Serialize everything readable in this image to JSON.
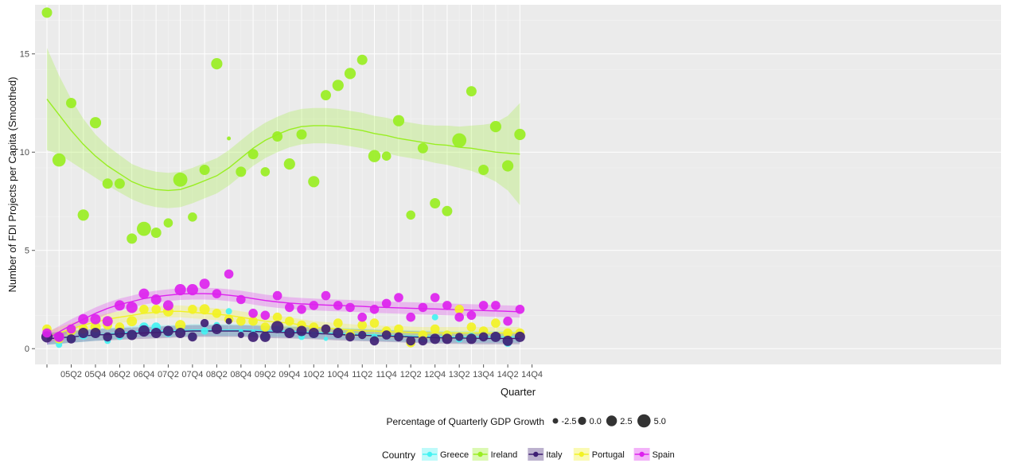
{
  "chart_data": {
    "type": "scatter",
    "title": "",
    "xlabel": "Quarter",
    "ylabel": "Number of FDI Projects per Capita (Smoothed)",
    "ylim": [
      -0.8,
      17.5
    ],
    "yticks": [
      0,
      5,
      10,
      15
    ],
    "grid": true,
    "legend_placement": "bottom",
    "x": [
      "05Q1",
      "05Q2",
      "05Q3",
      "05Q4",
      "06Q1",
      "06Q2",
      "06Q3",
      "06Q4",
      "07Q1",
      "07Q2",
      "07Q3",
      "07Q4",
      "08Q1",
      "08Q2",
      "08Q3",
      "08Q4",
      "09Q1",
      "09Q2",
      "09Q3",
      "09Q4",
      "10Q1",
      "10Q2",
      "10Q3",
      "10Q4",
      "11Q1",
      "11Q2",
      "11Q3",
      "11Q4",
      "12Q1",
      "12Q2",
      "12Q3",
      "12Q4",
      "13Q1",
      "13Q2",
      "13Q3",
      "13Q4",
      "14Q1",
      "14Q2",
      "14Q3",
      "14Q4"
    ],
    "x_tick_labels": [
      "",
      "05Q2",
      "05Q4",
      "06Q2",
      "06Q4",
      "07Q2",
      "07Q4",
      "08Q2",
      "08Q4",
      "09Q2",
      "09Q4",
      "10Q2",
      "10Q4",
      "11Q2",
      "11Q4",
      "12Q2",
      "12Q4",
      "13Q2",
      "13Q4",
      "14Q2",
      "14Q4"
    ],
    "size_legend": {
      "title": "Percentage of Quarterly GDP Growth",
      "labels": [
        "-2.5",
        "0.0",
        "2.5",
        "5.0"
      ]
    },
    "color_legend_title": "Country",
    "series": [
      {
        "name": "Greece",
        "color": "#44f2f2",
        "values": [
          0.9,
          0.2,
          0.5,
          0.7,
          0.8,
          0.4,
          0.6,
          0.7,
          1.1,
          1.1,
          0.8,
          1.0,
          0.6,
          0.9,
          1.2,
          1.9,
          0.9,
          0.8,
          0.6,
          1.0,
          0.9,
          0.6,
          0.7,
          0.5,
          0.8,
          0.7,
          0.7,
          0.6,
          0.7,
          0.6,
          0.5,
          0.5,
          1.6,
          0.7,
          0.5,
          0.6,
          0.7,
          0.6,
          0.3,
          0.7
        ],
        "sizes": [
          0.0,
          -1.0,
          -0.5,
          0.5,
          0.0,
          -1.0,
          -1.0,
          -0.5,
          0.5,
          0.5,
          0.0,
          0.0,
          -1.0,
          -0.5,
          -1.0,
          -1.0,
          -2.0,
          -1.5,
          -0.5,
          -1.0,
          -0.5,
          -1.0,
          -1.0,
          -2.0,
          -1.0,
          -1.5,
          -1.5,
          -1.0,
          -1.0,
          -1.0,
          -1.5,
          -1.0,
          -1.0,
          0.0,
          -0.5,
          0.0,
          0.0,
          0.0,
          0.0,
          -0.5
        ],
        "smooth": [
          0.5,
          0.55,
          0.6,
          0.65,
          0.7,
          0.75,
          0.8,
          0.85,
          0.9,
          0.9,
          0.9,
          0.92,
          0.95,
          0.95,
          0.95,
          0.95,
          0.95,
          0.95,
          0.9,
          0.9,
          0.88,
          0.85,
          0.83,
          0.8,
          0.78,
          0.75,
          0.72,
          0.7,
          0.68,
          0.66,
          0.64,
          0.62,
          0.62,
          0.6,
          0.6,
          0.6,
          0.6,
          0.6,
          0.6,
          0.6
        ]
      },
      {
        "name": "Ireland",
        "color": "#99ee22",
        "values": [
          17.1,
          9.6,
          12.5,
          6.8,
          11.5,
          8.4,
          8.4,
          5.6,
          6.1,
          5.9,
          6.4,
          8.6,
          6.7,
          9.1,
          14.5,
          10.7,
          9.0,
          9.9,
          9.0,
          10.8,
          9.4,
          10.9,
          8.5,
          12.9,
          13.4,
          14.0,
          14.7,
          9.8,
          9.8,
          11.6,
          6.8,
          10.2,
          7.4,
          7.0,
          10.6,
          13.1,
          9.1,
          11.3,
          9.3,
          10.9
        ],
        "sizes": [
          1.0,
          2.5,
          1.0,
          1.5,
          1.5,
          1.0,
          1.0,
          1.0,
          3.0,
          1.0,
          0.5,
          3.0,
          0.5,
          1.0,
          1.5,
          -2.5,
          1.0,
          1.0,
          0.5,
          1.0,
          1.5,
          1.0,
          1.5,
          1.0,
          1.5,
          1.5,
          1.0,
          2.0,
          0.5,
          1.5,
          0.5,
          1.0,
          1.0,
          1.0,
          3.0,
          1.0,
          1.0,
          1.5,
          1.5,
          1.5
        ],
        "smooth": [
          12.7,
          11.9,
          11.1,
          10.4,
          9.8,
          9.3,
          8.9,
          8.5,
          8.25,
          8.1,
          8.05,
          8.1,
          8.3,
          8.55,
          8.8,
          9.2,
          9.7,
          10.2,
          10.6,
          10.9,
          11.15,
          11.3,
          11.35,
          11.35,
          11.3,
          11.2,
          11.1,
          10.95,
          10.85,
          10.7,
          10.6,
          10.5,
          10.4,
          10.35,
          10.25,
          10.2,
          10.1,
          10.0,
          9.95,
          9.9
        ],
        "band": [
          2.6,
          2.0,
          1.6,
          1.3,
          1.1,
          1.0,
          0.95,
          0.9,
          0.9,
          0.9,
          0.9,
          0.9,
          0.9,
          0.9,
          0.9,
          0.9,
          0.9,
          0.9,
          0.9,
          0.9,
          0.9,
          0.9,
          0.9,
          0.9,
          0.9,
          0.9,
          0.9,
          0.9,
          0.9,
          0.9,
          0.9,
          0.9,
          0.95,
          1.0,
          1.05,
          1.15,
          1.3,
          1.5,
          1.9,
          2.6
        ]
      },
      {
        "name": "Italy",
        "color": "#3f1f74",
        "values": [
          0.6,
          0.6,
          0.5,
          0.8,
          0.8,
          0.6,
          0.8,
          0.7,
          0.9,
          0.8,
          0.9,
          0.8,
          0.6,
          1.3,
          1.0,
          1.4,
          0.7,
          0.6,
          0.6,
          1.1,
          0.8,
          0.9,
          0.8,
          1.0,
          0.8,
          0.6,
          0.7,
          0.4,
          0.7,
          0.6,
          0.4,
          0.4,
          0.5,
          0.5,
          0.6,
          0.5,
          0.6,
          0.6,
          0.4,
          0.6
        ],
        "sizes": [
          1.5,
          0.5,
          0.5,
          1.0,
          1.0,
          0.5,
          1.0,
          1.0,
          1.5,
          1.0,
          1.0,
          1.0,
          0.5,
          0.0,
          1.0,
          -1.0,
          -1.0,
          1.0,
          1.0,
          2.0,
          1.0,
          1.0,
          1.0,
          0.5,
          1.0,
          0.5,
          0.0,
          0.5,
          0.5,
          0.5,
          0.5,
          0.5,
          1.0,
          1.0,
          0.0,
          1.0,
          0.5,
          1.0,
          1.0,
          1.0
        ],
        "smooth": [
          0.5,
          0.55,
          0.6,
          0.65,
          0.7,
          0.72,
          0.75,
          0.78,
          0.8,
          0.82,
          0.85,
          0.88,
          0.9,
          0.9,
          0.9,
          0.9,
          0.9,
          0.88,
          0.85,
          0.83,
          0.82,
          0.8,
          0.78,
          0.75,
          0.72,
          0.7,
          0.68,
          0.66,
          0.64,
          0.62,
          0.6,
          0.58,
          0.56,
          0.55,
          0.54,
          0.53,
          0.52,
          0.52,
          0.52,
          0.52
        ]
      },
      {
        "name": "Portugal",
        "color": "#f2f224",
        "values": [
          1.0,
          0.5,
          0.9,
          1.0,
          1.1,
          1.2,
          1.1,
          1.4,
          2.0,
          2.0,
          1.9,
          1.2,
          2.0,
          2.0,
          1.8,
          1.5,
          1.4,
          1.4,
          1.1,
          1.6,
          1.4,
          1.2,
          1.1,
          1.0,
          1.3,
          0.7,
          1.2,
          1.3,
          0.9,
          1.0,
          0.3,
          0.7,
          1.0,
          0.7,
          2.0,
          1.1,
          0.9,
          1.3,
          0.8,
          0.8
        ],
        "sizes": [
          0.5,
          0.5,
          0.5,
          0.5,
          1.0,
          0.5,
          0.5,
          1.0,
          0.5,
          0.5,
          1.0,
          1.0,
          0.5,
          1.0,
          0.5,
          0.5,
          0.5,
          0.5,
          0.5,
          0.5,
          0.5,
          0.5,
          0.5,
          0.5,
          0.5,
          0.5,
          0.5,
          0.5,
          0.5,
          0.5,
          0.5,
          0.5,
          0.5,
          0.5,
          0.5,
          0.5,
          0.5,
          0.5,
          0.5,
          0.5
        ],
        "smooth": [
          0.6,
          0.8,
          1.0,
          1.2,
          1.35,
          1.5,
          1.6,
          1.7,
          1.8,
          1.85,
          1.9,
          1.9,
          1.85,
          1.8,
          1.75,
          1.7,
          1.6,
          1.5,
          1.4,
          1.35,
          1.3,
          1.2,
          1.1,
          1.05,
          1.0,
          0.95,
          0.9,
          0.9,
          0.85,
          0.85,
          0.82,
          0.8,
          0.8,
          0.8,
          0.8,
          0.8,
          0.8,
          0.8,
          0.8,
          0.8
        ]
      },
      {
        "name": "Spain",
        "color": "#dd22ee",
        "values": [
          0.8,
          0.6,
          1.0,
          1.5,
          1.5,
          1.4,
          2.2,
          2.1,
          2.8,
          2.5,
          2.2,
          3.0,
          3.0,
          3.3,
          2.8,
          3.8,
          2.5,
          1.8,
          1.7,
          2.7,
          2.1,
          2.0,
          2.2,
          2.7,
          2.2,
          2.1,
          1.6,
          2.0,
          2.3,
          2.6,
          1.6,
          2.1,
          2.6,
          2.2,
          1.6,
          1.7,
          2.2,
          2.2,
          1.4,
          2.0
        ],
        "sizes": [
          0.5,
          1.0,
          0.5,
          1.0,
          1.0,
          1.0,
          1.0,
          1.5,
          1.0,
          1.0,
          1.0,
          1.5,
          1.5,
          1.0,
          0.5,
          0.5,
          0.5,
          0.5,
          0.5,
          0.5,
          0.5,
          0.5,
          0.5,
          0.5,
          0.5,
          0.5,
          0.5,
          0.5,
          0.5,
          0.5,
          0.5,
          0.5,
          0.5,
          0.5,
          0.5,
          0.5,
          0.5,
          0.5,
          0.5,
          0.5
        ],
        "smooth": [
          0.5,
          0.85,
          1.2,
          1.5,
          1.8,
          2.05,
          2.25,
          2.4,
          2.55,
          2.65,
          2.72,
          2.78,
          2.8,
          2.8,
          2.78,
          2.72,
          2.65,
          2.55,
          2.45,
          2.38,
          2.32,
          2.28,
          2.25,
          2.22,
          2.2,
          2.18,
          2.15,
          2.12,
          2.1,
          2.08,
          2.06,
          2.04,
          2.02,
          2.0,
          1.98,
          1.96,
          1.94,
          1.92,
          1.9,
          1.88
        ]
      }
    ]
  }
}
